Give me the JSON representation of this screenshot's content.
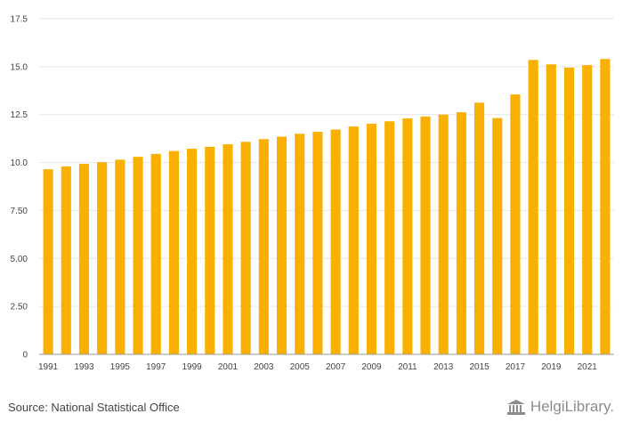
{
  "chart_data": {
    "type": "bar",
    "categories": [
      "1991",
      "1992",
      "1993",
      "1994",
      "1995",
      "1996",
      "1997",
      "1998",
      "1999",
      "2000",
      "2001",
      "2002",
      "2003",
      "2004",
      "2005",
      "2006",
      "2007",
      "2008",
      "2009",
      "2010",
      "2011",
      "2012",
      "2013",
      "2014",
      "2015",
      "2016",
      "2017",
      "2018",
      "2019",
      "2020",
      "2021",
      "2022"
    ],
    "values": [
      9.65,
      9.8,
      9.93,
      10.02,
      10.15,
      10.3,
      10.45,
      10.6,
      10.72,
      10.82,
      10.95,
      11.08,
      11.22,
      11.35,
      11.5,
      11.6,
      11.72,
      11.88,
      12.02,
      12.15,
      12.3,
      12.4,
      12.5,
      12.62,
      13.12,
      12.32,
      13.55,
      15.35,
      15.12,
      14.95,
      15.08,
      15.4
    ],
    "x_tick_labels": [
      "1991",
      "1993",
      "1995",
      "1997",
      "1999",
      "2001",
      "2003",
      "2005",
      "2007",
      "2009",
      "2011",
      "2013",
      "2015",
      "2017",
      "2019",
      "2021"
    ],
    "y_tick_labels": [
      "0",
      "2.50",
      "5.00",
      "7.50",
      "10.0",
      "12.5",
      "15.0",
      "17.5"
    ],
    "y_tick_values": [
      0,
      2.5,
      5,
      7.5,
      10,
      12.5,
      15,
      17.5
    ],
    "ylim": [
      0,
      17.5
    ],
    "grid": true,
    "bar_color": "#f9b000",
    "title": "",
    "xlabel": "",
    "ylabel": ""
  },
  "footer": {
    "source": "Source: National Statistical Office",
    "logo_text": "HelgiLibrary."
  },
  "colors": {
    "grid": "#e6e6e6",
    "axis": "#999999",
    "text": "#444444",
    "logo": "#8c8c8c"
  },
  "icons": {
    "logo": "library-building-icon"
  }
}
